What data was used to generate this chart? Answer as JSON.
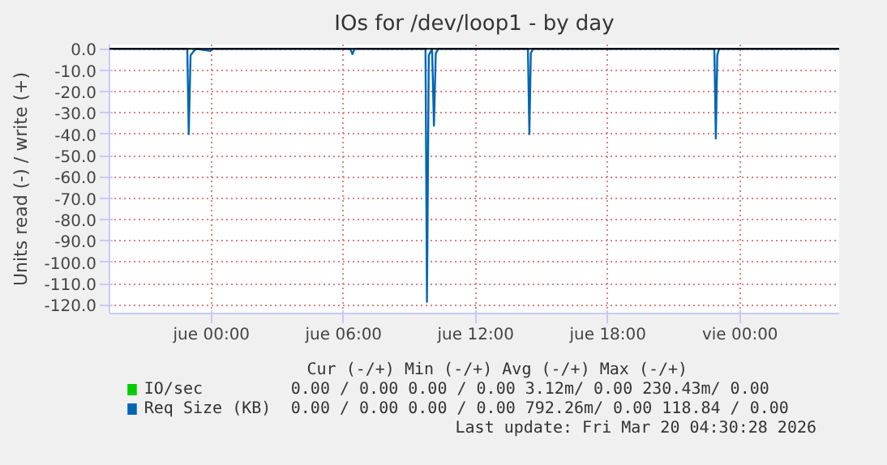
{
  "chart_data": {
    "type": "line",
    "title": "IOs for /dev/loop1 - by day",
    "ylabel": "Units read (-) / write (+)",
    "xlim": [
      "2026-03-18T19:22",
      "2026-03-20T04:30"
    ],
    "ylim": [
      -124,
      2
    ],
    "xticks": [
      {
        "value": "2026-03-19T00:00",
        "label": "jue 00:00"
      },
      {
        "value": "2026-03-19T06:00",
        "label": "jue 06:00"
      },
      {
        "value": "2026-03-19T12:00",
        "label": "jue 12:00"
      },
      {
        "value": "2026-03-19T18:00",
        "label": "jue 18:00"
      },
      {
        "value": "2026-03-20T00:00",
        "label": "vie 00:00"
      }
    ],
    "yticks": [
      {
        "value": 0,
        "label": "0.0"
      },
      {
        "value": -10,
        "label": "-10.0"
      },
      {
        "value": -20,
        "label": "-20.0"
      },
      {
        "value": -30,
        "label": "-30.0"
      },
      {
        "value": -40,
        "label": "-40.0"
      },
      {
        "value": -50,
        "label": "-50.0"
      },
      {
        "value": -60,
        "label": "-60.0"
      },
      {
        "value": -70,
        "label": "-70.0"
      },
      {
        "value": -80,
        "label": "-80.0"
      },
      {
        "value": -90,
        "label": "-90.0"
      },
      {
        "value": -100,
        "label": "-100.0"
      },
      {
        "value": -110,
        "label": "-110.0"
      },
      {
        "value": -120,
        "label": "-120.0"
      }
    ],
    "grid": true,
    "legend": "bottom left",
    "ref_lines": [
      {
        "axis": "y",
        "value": 0,
        "color": "#000000"
      }
    ],
    "series": [
      {
        "name": "IO/sec",
        "color": "#00cc00"
      },
      {
        "name": "Req Size (KB)",
        "color": "#0066b3",
        "x": [
          "2026-03-18T19:22",
          "2026-03-18T22:54",
          "2026-03-18T22:58",
          "2026-03-18T23:03",
          "2026-03-18T23:12",
          "2026-03-18T23:18",
          "2026-03-18T23:57",
          "2026-03-19T00:03",
          "2026-03-19T06:18",
          "2026-03-19T06:24",
          "2026-03-19T06:30",
          "2026-03-19T09:43",
          "2026-03-19T09:47",
          "2026-03-19T09:52",
          "2026-03-19T10:01",
          "2026-03-19T10:06",
          "2026-03-19T10:11",
          "2026-03-19T10:18",
          "2026-03-19T14:22",
          "2026-03-19T14:26",
          "2026-03-19T14:30",
          "2026-03-19T14:36",
          "2026-03-19T22:50",
          "2026-03-19T22:54",
          "2026-03-19T22:58",
          "2026-03-19T23:03",
          "2026-03-20T04:30"
        ],
        "values": [
          0,
          0,
          -40,
          -3,
          -1,
          0,
          -1,
          0,
          0,
          -2.5,
          0,
          0,
          -118.5,
          -3,
          0,
          -36,
          -2,
          0,
          0,
          -40,
          -2,
          0,
          0,
          -42,
          -3,
          0,
          0
        ]
      }
    ],
    "annotations": [
      "Cur (-/+)          Min (-/+)          Avg (-/+)          Max (-/+)",
      "0.00 /  0.00      0.00 /  0.00       3.12m/  0.00    230.43m/  0.00",
      "0.00 /  0.00      0.00 /  0.00     792.26m/  0.00     118.84 /  0.00",
      "Last update: Fri Mar 20 04:30:28 2026"
    ]
  }
}
